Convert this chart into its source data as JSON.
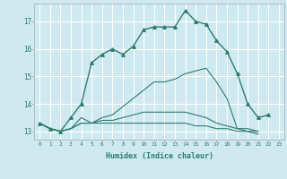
{
  "title": "",
  "xlabel": "Humidex (Indice chaleur)",
  "ylabel": "",
  "background_color": "#cee9f0",
  "grid_color": "#ffffff",
  "line_color": "#2e7d6e",
  "xlim": [
    -0.5,
    23.5
  ],
  "ylim": [
    12.7,
    17.65
  ],
  "yticks": [
    13,
    14,
    15,
    16,
    17
  ],
  "xticks": [
    0,
    1,
    2,
    3,
    4,
    5,
    6,
    7,
    8,
    9,
    10,
    11,
    12,
    13,
    14,
    15,
    16,
    17,
    18,
    19,
    20,
    21,
    22,
    23
  ],
  "xtick_labels": [
    "0",
    "1",
    "2",
    "3",
    "4",
    "5",
    "6",
    "7",
    "8",
    "9",
    "10",
    "11",
    "12",
    "13",
    "14",
    "15",
    "16",
    "17",
    "18",
    "19",
    "20",
    "21",
    "22",
    "23"
  ],
  "series": [
    {
      "x": [
        0,
        1,
        2,
        3,
        4,
        5,
        6,
        7,
        8,
        9,
        10,
        11,
        12,
        13,
        14,
        15,
        16,
        17,
        18,
        19,
        20,
        21,
        22
      ],
      "y": [
        13.3,
        13.1,
        13.0,
        13.5,
        14.0,
        15.5,
        15.8,
        16.0,
        15.8,
        16.1,
        16.7,
        16.8,
        16.8,
        16.8,
        17.4,
        17.0,
        16.9,
        16.3,
        15.9,
        15.1,
        14.0,
        13.5,
        13.6
      ],
      "marker": "^",
      "markersize": 2.5,
      "linewidth": 1.0,
      "has_markers": true
    },
    {
      "x": [
        0,
        1,
        2,
        3,
        4,
        5,
        6,
        7,
        8,
        9,
        10,
        11,
        12,
        13,
        14,
        15,
        16,
        17,
        18,
        19,
        20,
        21
      ],
      "y": [
        13.3,
        13.1,
        13.0,
        13.1,
        13.5,
        13.3,
        13.5,
        13.6,
        13.9,
        14.2,
        14.5,
        14.8,
        14.8,
        14.9,
        15.1,
        15.2,
        15.3,
        14.8,
        14.2,
        13.1,
        13.0,
        12.9
      ],
      "marker": null,
      "linewidth": 0.8,
      "has_markers": false
    },
    {
      "x": [
        0,
        1,
        2,
        3,
        4,
        5,
        6,
        7,
        8,
        9,
        10,
        11,
        12,
        13,
        14,
        15,
        16,
        17,
        18,
        19,
        20,
        21
      ],
      "y": [
        13.3,
        13.1,
        13.0,
        13.1,
        13.3,
        13.3,
        13.4,
        13.4,
        13.5,
        13.6,
        13.7,
        13.7,
        13.7,
        13.7,
        13.7,
        13.6,
        13.5,
        13.3,
        13.2,
        13.1,
        13.1,
        13.0
      ],
      "marker": null,
      "linewidth": 0.8,
      "has_markers": false
    },
    {
      "x": [
        0,
        1,
        2,
        3,
        4,
        5,
        6,
        7,
        8,
        9,
        10,
        11,
        12,
        13,
        14,
        15,
        16,
        17,
        18,
        19,
        20,
        21
      ],
      "y": [
        13.3,
        13.1,
        13.0,
        13.1,
        13.3,
        13.3,
        13.3,
        13.3,
        13.3,
        13.3,
        13.3,
        13.3,
        13.3,
        13.3,
        13.3,
        13.2,
        13.2,
        13.1,
        13.1,
        13.0,
        13.0,
        13.0
      ],
      "marker": null,
      "linewidth": 0.8,
      "has_markers": false
    }
  ]
}
